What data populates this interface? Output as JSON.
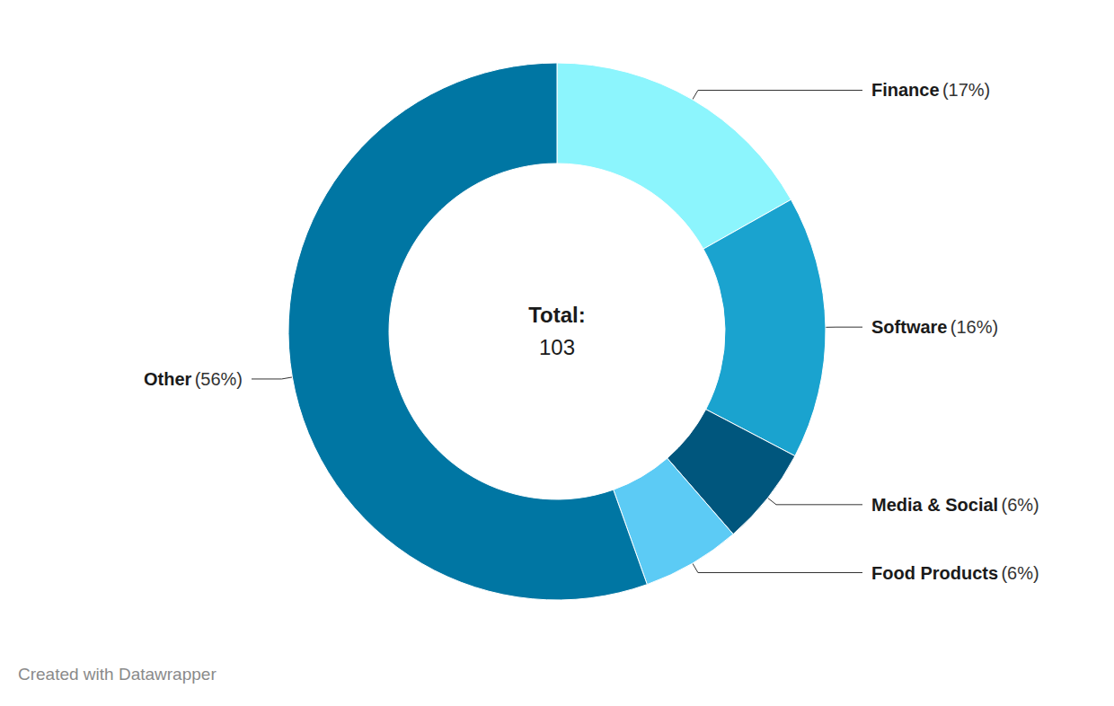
{
  "chart_data": {
    "type": "pie",
    "categories": [
      "Finance",
      "Software",
      "Media & Social",
      "Food Products",
      "Other"
    ],
    "values": [
      17,
      16,
      6,
      6,
      56
    ],
    "value_labels": [
      "(17%)",
      "(16%)",
      "(6%)",
      "(6%)",
      "(56%)"
    ],
    "colors": [
      "#8cf5fd",
      "#1aa3cf",
      "#00567d",
      "#5ccbf5",
      "#0076a3"
    ],
    "data_labels": true,
    "total_label": "Total:",
    "total": 103,
    "footer": "Created with Datawrapper"
  }
}
